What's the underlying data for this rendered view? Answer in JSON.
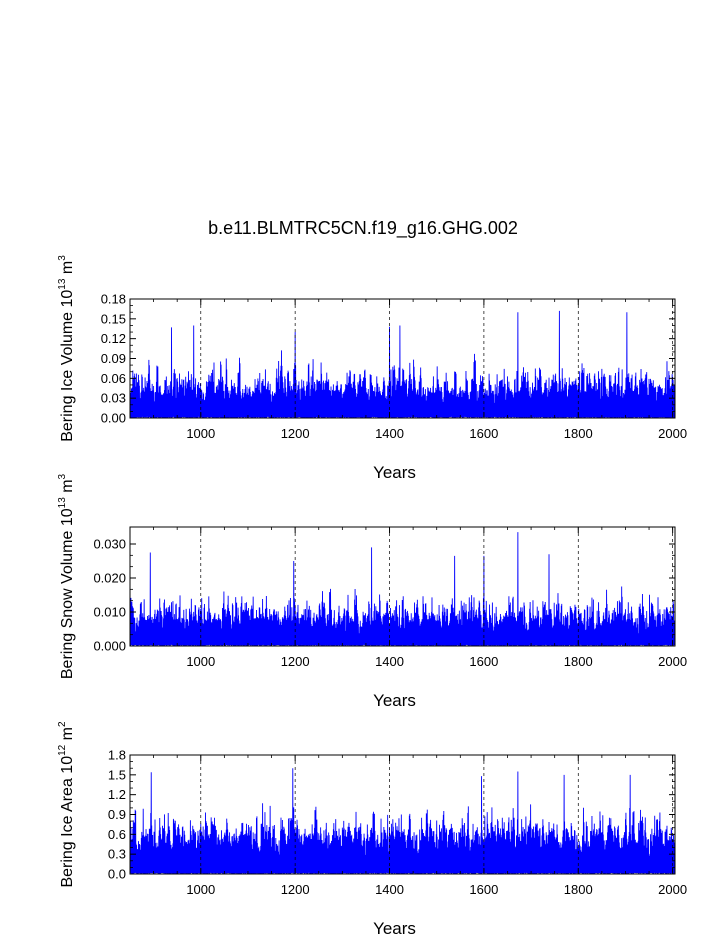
{
  "title": "b.e11.BLMTRC5CN.f19_g16.GHG.002",
  "colors": {
    "series": "#0000ff",
    "grid": "#000000",
    "axis": "#000000"
  },
  "chart_data": [
    {
      "type": "line",
      "ylabel": {
        "text": "Bering Ice Volume 10",
        "sup1": "13",
        "mid": " m",
        "sup2": "3"
      },
      "xlabel": "Years",
      "xlim": [
        850,
        2005
      ],
      "ylim": [
        0,
        0.18
      ],
      "xticks": [
        "1000",
        "1200",
        "1400",
        "1600",
        "1800",
        "2000"
      ],
      "yticks": [
        "0.00",
        "0.03",
        "0.06",
        "0.09",
        "0.12",
        "0.15",
        "0.18"
      ],
      "grid": "dashed vertical at 1000, 1200, 1400, 1600, 1800, 2000",
      "series": [
        {
          "base": 0.055,
          "amp": 0.06,
          "floor": 0.0,
          "peaks": [
            [
              1672,
              0.16
            ],
            [
              1760,
              0.162
            ],
            [
              1903,
              0.16
            ],
            [
              1422,
              0.14
            ],
            [
              1400,
              0.138
            ],
            [
              938,
              0.137
            ],
            [
              985,
              0.14
            ],
            [
              1200,
              0.13
            ]
          ]
        }
      ]
    },
    {
      "type": "line",
      "ylabel": {
        "text": "Bering Snow Volume 10",
        "sup1": "13",
        "mid": " m",
        "sup2": "3"
      },
      "xlabel": "Years",
      "xlim": [
        850,
        2005
      ],
      "ylim": [
        0,
        0.035
      ],
      "xticks": [
        "1000",
        "1200",
        "1400",
        "1600",
        "1800",
        "2000"
      ],
      "yticks": [
        "0.000",
        "0.010",
        "0.020",
        "0.030"
      ],
      "grid": "dashed vertical at 1000, 1200, 1400, 1600, 1800, 2000",
      "series": [
        {
          "base": 0.01,
          "amp": 0.011,
          "floor": 0.0,
          "peaks": [
            [
              1672,
              0.0335
            ],
            [
              1362,
              0.029
            ],
            [
              1538,
              0.0265
            ],
            [
              1738,
              0.027
            ],
            [
              893,
              0.0275
            ],
            [
              1197,
              0.025
            ],
            [
              1600,
              0.0265
            ]
          ]
        }
      ]
    },
    {
      "type": "line",
      "ylabel": {
        "text": "Bering Ice Area 10",
        "sup1": "12",
        "mid": " m",
        "sup2": "2"
      },
      "xlabel": "Years",
      "xlim": [
        850,
        2005
      ],
      "ylim": [
        0,
        1.8
      ],
      "xticks": [
        "1000",
        "1200",
        "1400",
        "1600",
        "1800",
        "2000"
      ],
      "yticks": [
        "0.0",
        "0.3",
        "0.6",
        "0.9",
        "1.2",
        "1.5",
        "1.8"
      ],
      "grid": "dashed vertical at 1000, 1200, 1400, 1600, 1800, 2000",
      "series": [
        {
          "base": 0.72,
          "amp": 0.55,
          "floor": 0.0,
          "peaks": [
            [
              1195,
              1.6
            ],
            [
              895,
              1.54
            ],
            [
              1672,
              1.55
            ],
            [
              1595,
              1.48
            ],
            [
              1770,
              1.5
            ],
            [
              1910,
              1.5
            ]
          ]
        }
      ]
    }
  ]
}
